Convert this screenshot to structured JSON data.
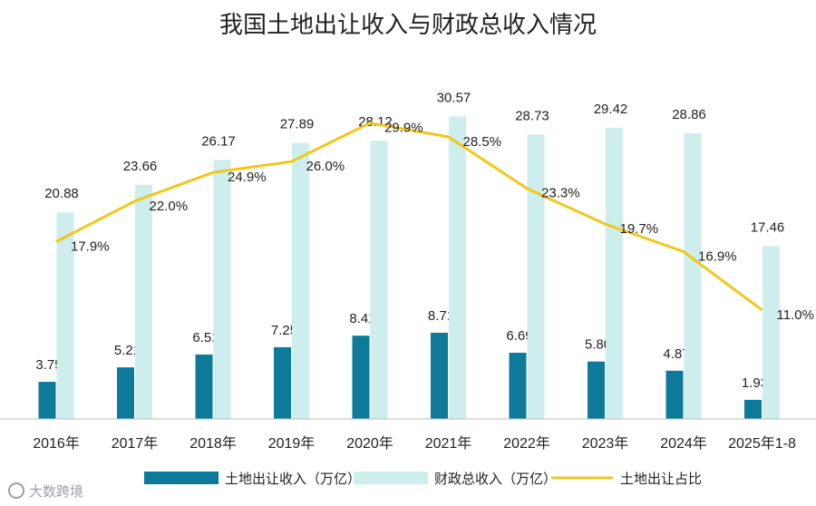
{
  "chart_data": {
    "type": "bar",
    "title": "我国土地出让收入与财政总收入情况",
    "categories": [
      "2016年",
      "2017年",
      "2018年",
      "2019年",
      "2020年",
      "2021年",
      "2022年",
      "2023年",
      "2024年",
      "2025年1-8"
    ],
    "series": [
      {
        "name": "土地出让收入（万亿）",
        "type": "bar",
        "color": "#0e7a99",
        "values": [
          3.75,
          5.21,
          6.51,
          7.25,
          8.41,
          8.71,
          6.69,
          5.8,
          4.87,
          1.93
        ],
        "labels": [
          "3.75",
          "5.21",
          "6.51",
          "7.25",
          "8.41",
          "8.71",
          "6.69",
          "5.80",
          "4.87",
          "1.93"
        ]
      },
      {
        "name": "财政总收入（万亿）",
        "type": "bar",
        "color": "#cdeeed",
        "values": [
          20.88,
          23.66,
          26.17,
          27.89,
          28.12,
          30.57,
          28.73,
          29.42,
          28.86,
          17.46
        ],
        "labels": [
          "20.88",
          "23.66",
          "26.17",
          "27.89",
          "28.12",
          "30.57",
          "28.73",
          "29.42",
          "28.86",
          "17.46"
        ]
      },
      {
        "name": "土地出让占比",
        "type": "line",
        "color": "#efc81a",
        "values": [
          17.9,
          22.0,
          24.9,
          26.0,
          29.9,
          28.5,
          23.3,
          19.7,
          16.9,
          11.0
        ],
        "labels": [
          "17.9%",
          "22.0%",
          "24.9%",
          "26.0%",
          "29.9%",
          "28.5%",
          "23.3%",
          "19.7%",
          "16.9%",
          "11.0%"
        ]
      }
    ],
    "ylim": [
      0,
      35
    ],
    "y2lim": [
      0,
      35
    ],
    "grid": false,
    "legend": "bottom"
  },
  "watermark": "大数跨境"
}
